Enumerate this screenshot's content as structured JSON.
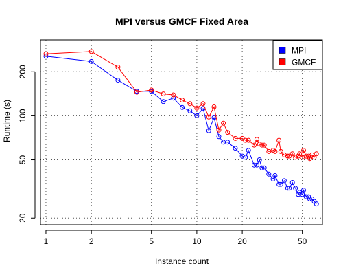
{
  "chart_data": {
    "type": "line",
    "title": "MPI versus GMCF Fixed Area",
    "xlabel": "Instance count",
    "ylabel": "Runtime (s)",
    "x_scale": "log",
    "y_scale": "log",
    "xlim": [
      0.92,
      68
    ],
    "ylim": [
      18,
      330
    ],
    "x_ticks": [
      1,
      2,
      5,
      10,
      20,
      50
    ],
    "x_tick_labels": [
      "1",
      "2",
      "5",
      "10",
      "20",
      "50"
    ],
    "y_ticks": [
      20,
      50,
      100,
      200
    ],
    "y_tick_labels": [
      "20",
      "50",
      "100",
      "200"
    ],
    "grid": true,
    "grid_style": "dotted",
    "marker": "open-circle",
    "legend_position": "top-right",
    "series": [
      {
        "name": "MPI",
        "color": "#0000ff",
        "x": [
          1,
          2,
          3,
          4,
          5,
          6,
          7,
          8,
          9,
          10,
          11,
          12,
          13,
          14,
          15,
          16,
          18,
          20,
          21,
          22,
          24,
          25,
          26,
          27,
          28,
          30,
          32,
          33,
          35,
          36,
          38,
          40,
          41,
          43,
          45,
          47,
          48,
          50,
          51,
          53,
          55,
          56,
          58,
          60,
          62
        ],
        "values": [
          255,
          235,
          175,
          147,
          147,
          125,
          132,
          114,
          108,
          100,
          112,
          79,
          97,
          72,
          66,
          66,
          60,
          53,
          52,
          58,
          46,
          46,
          50,
          44,
          44,
          40,
          37,
          39,
          34,
          34,
          36,
          32,
          32,
          35,
          32,
          29,
          30,
          29,
          31,
          28,
          28,
          27,
          27,
          26,
          25
        ]
      },
      {
        "name": "GMCF",
        "color": "#ff0000",
        "x": [
          1,
          2,
          3,
          4,
          5,
          6,
          7,
          8,
          9,
          10,
          11,
          12,
          13,
          14,
          15,
          16,
          18,
          20,
          21,
          22,
          24,
          25,
          26,
          27,
          28,
          30,
          32,
          33,
          35,
          36,
          38,
          40,
          41,
          43,
          45,
          47,
          48,
          50,
          51,
          53,
          55,
          56,
          58,
          60,
          62
        ],
        "values": [
          265,
          275,
          215,
          145,
          150,
          141,
          139,
          128,
          121,
          113,
          121,
          98,
          115,
          80,
          89,
          77,
          70,
          70,
          68,
          68,
          63,
          69,
          64,
          63,
          63,
          57,
          58,
          57,
          68,
          57,
          54,
          53,
          53,
          55,
          52,
          53,
          55,
          52,
          58,
          53,
          53,
          51,
          54,
          52,
          55
        ]
      }
    ]
  }
}
